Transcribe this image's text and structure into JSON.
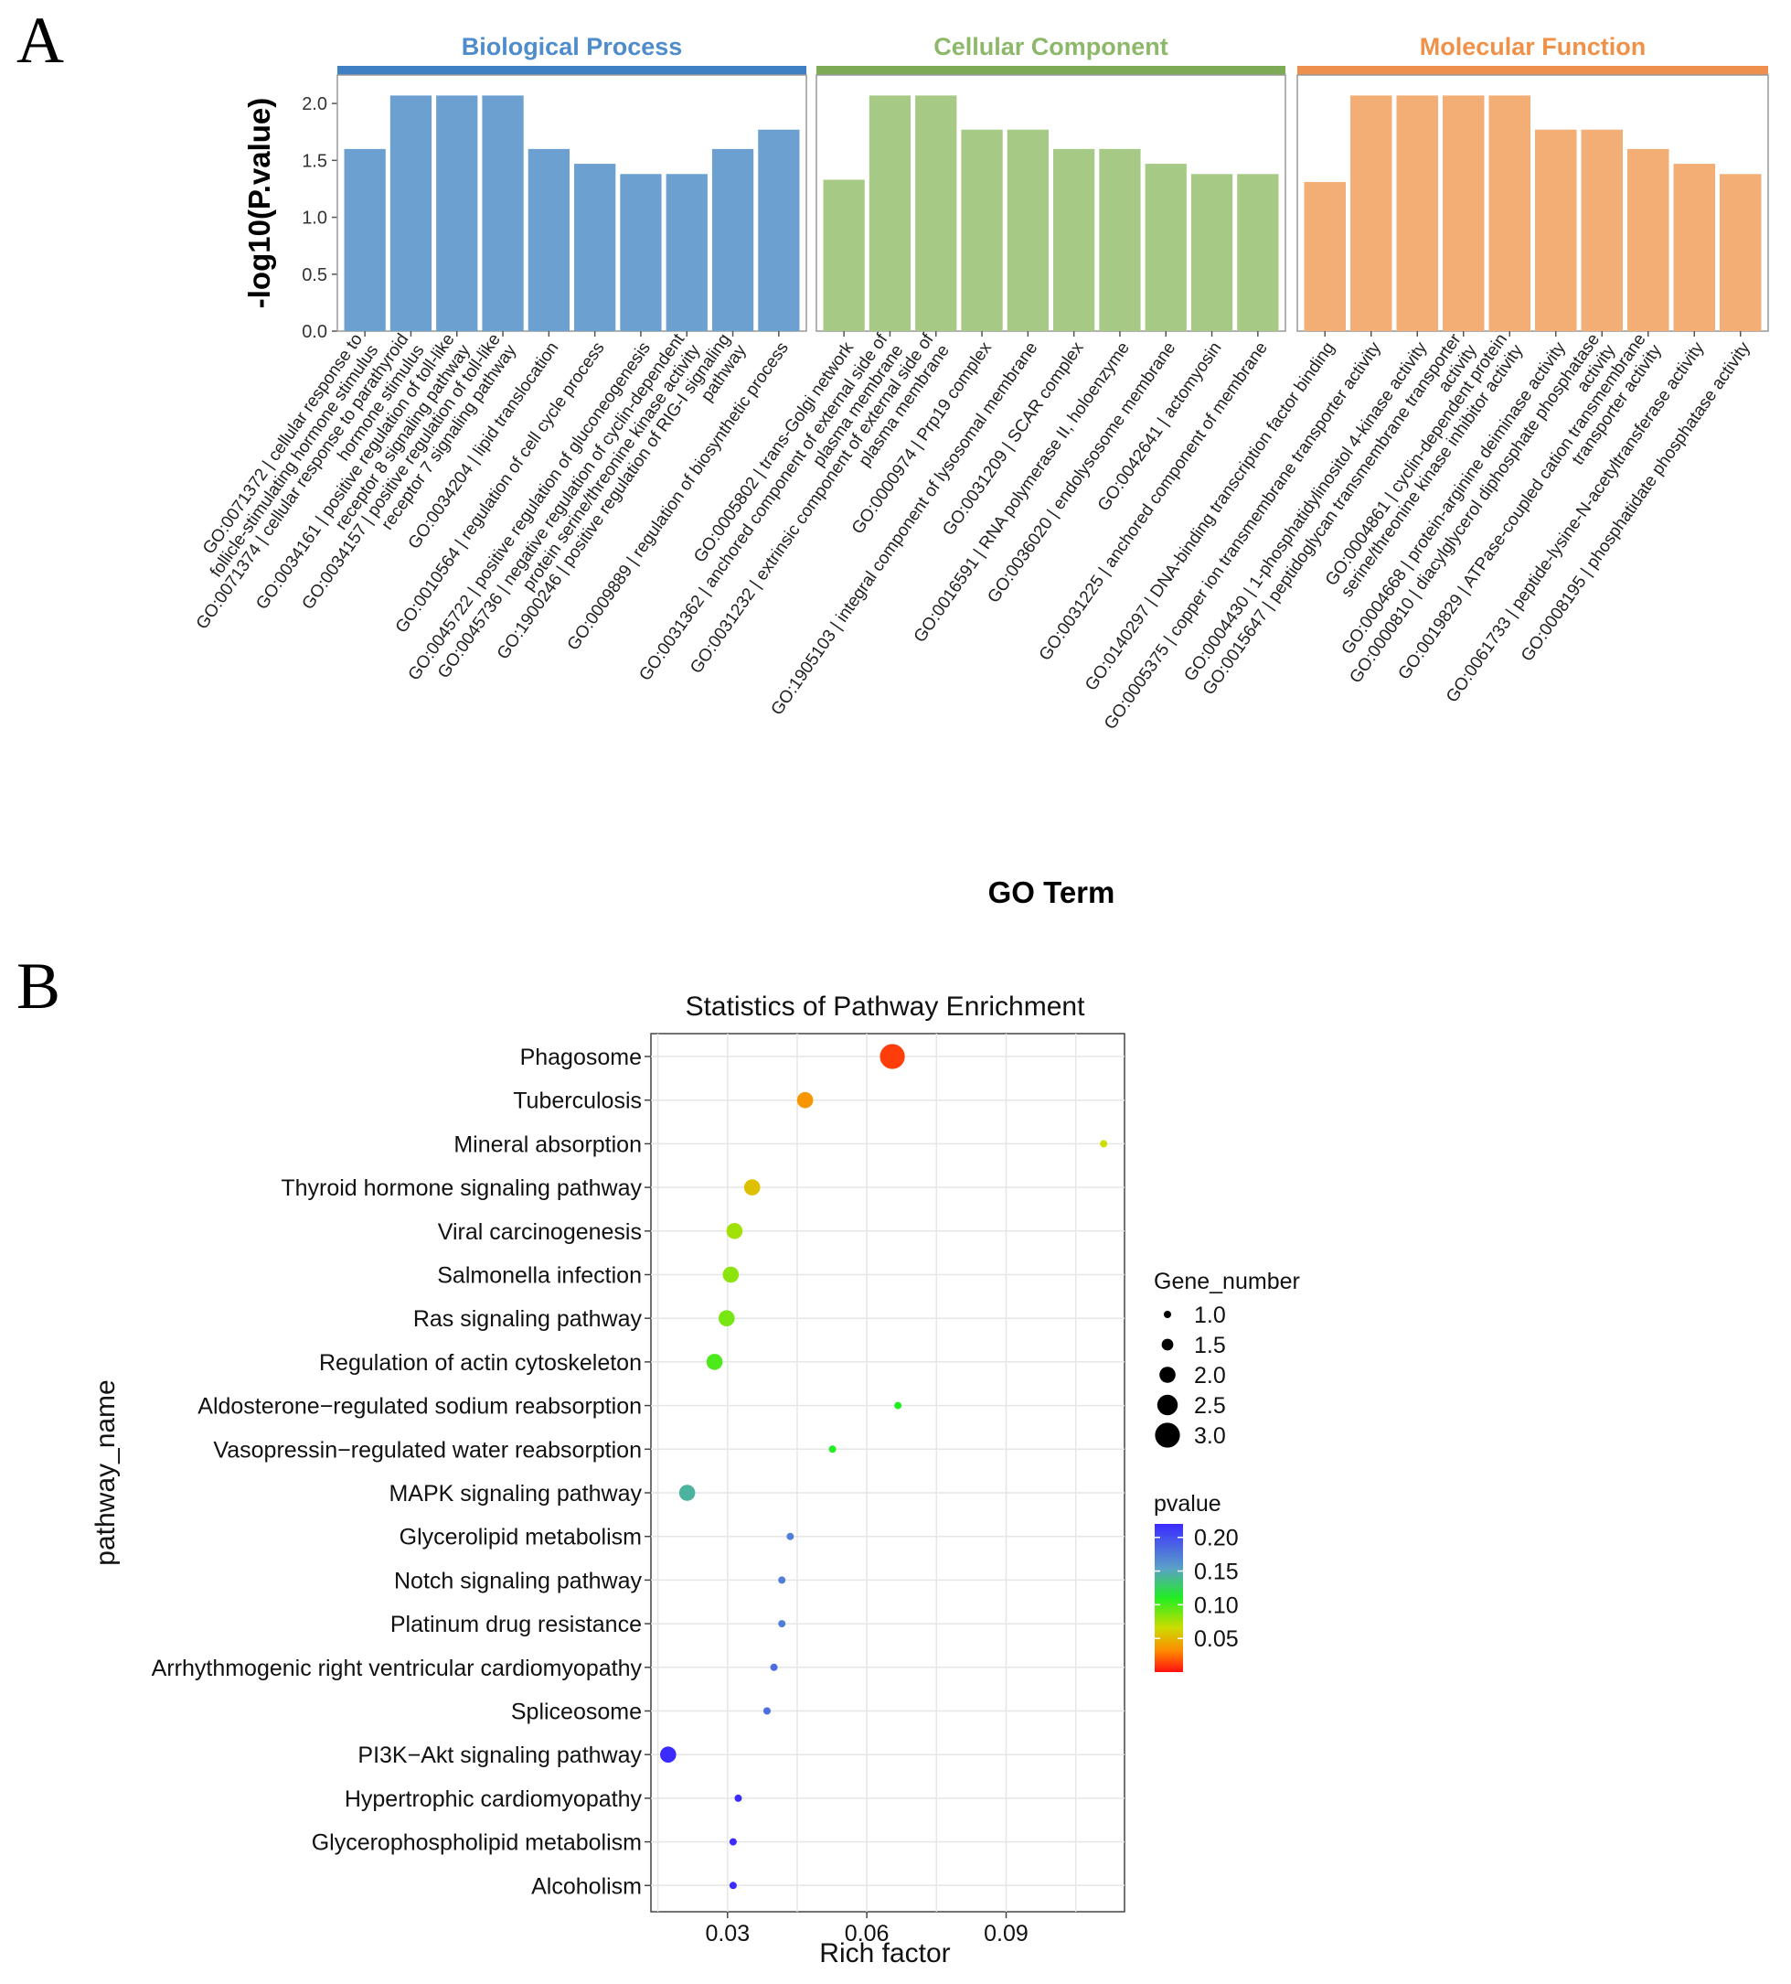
{
  "panel_a": {
    "letter": "A"
  },
  "panel_b": {
    "letter": "B"
  },
  "chart_data": [
    {
      "type": "bar",
      "title": "",
      "xlabel": "GO Term",
      "ylabel": "-log10(P.value)",
      "ylim": [
        0,
        2.25
      ],
      "yticks": [
        "0.0",
        "0.5",
        "1.0",
        "1.5",
        "2.0"
      ],
      "facets": [
        {
          "name": "Biological Process",
          "color": "#6CA0D0",
          "strip_color": "#3F7FC4",
          "title_color": "#4E8CCB",
          "categories": [
            "GO:0071372 | cellular response to follicle-stimulating hormone stimulus",
            "GO:0071374 | cellular response to parathyroid hormone stimulus",
            "GO:0034161 | positive regulation of toll-like receptor 8 signaling pathway",
            "GO:0034157 | positive regulation of toll-like receptor 7 signaling pathway",
            "GO:0034204 | lipid translocation",
            "GO:0010564 | regulation of cell cycle process",
            "GO:0045722 | positive regulation of gluconeogenesis",
            "GO:0045736 | negative regulation of cyclin-dependent protein serine/threonine kinase activity",
            "GO:1900246 | positive regulation of RIG-I signaling pathway",
            "GO:0009889 | regulation of biosynthetic process"
          ],
          "values": [
            1.6,
            2.07,
            2.07,
            2.07,
            1.6,
            1.47,
            1.38,
            1.38,
            1.6,
            1.77
          ]
        },
        {
          "name": "Cellular Component",
          "color": "#A6C985",
          "strip_color": "#7DAA55",
          "title_color": "#8DB86A",
          "categories": [
            "GO:0005802 | trans-Golgi network",
            "GO:0031362 | anchored component of external side of plasma membrane",
            "GO:0031232 | extrinsic component of external side of plasma membrane",
            "GO:0000974 | Prp19 complex",
            "GO:1905103 | integral component of lysosomal membrane",
            "GO:0031209 | SCAR complex",
            "GO:0016591 | RNA polymerase II, holoenzyme",
            "GO:0036020 | endolysosome membrane",
            "GO:0042641 | actomyosin",
            "GO:0031225 | anchored component of membrane"
          ],
          "values": [
            1.33,
            2.07,
            2.07,
            1.77,
            1.77,
            1.6,
            1.6,
            1.47,
            1.38,
            1.38
          ]
        },
        {
          "name": "Molecular Function",
          "color": "#F2AE75",
          "strip_color": "#EE8F4E",
          "title_color": "#F0914A",
          "categories": [
            "GO:0140297 | DNA-binding transcription factor binding",
            "GO:0005375 | copper ion transmembrane transporter activity",
            "GO:0004430 | 1-phosphatidylinositol 4-kinase activity",
            "GO:0015647 | peptidoglycan transmembrane transporter activity",
            "GO:0004861 | cyclin-dependent protein serine/threonine kinase inhibitor activity",
            "GO:0004668 | protein-arginine deiminase activity",
            "GO:0000810 | diacylglycerol diphosphate phosphatase activity",
            "GO:0019829 | ATPase-coupled cation transmembrane transporter activity",
            "GO:0061733 | peptide-lysine-N-acetyltransferase activity",
            "GO:0008195 | phosphatidate phosphatase activity"
          ],
          "values": [
            1.31,
            2.07,
            2.07,
            2.07,
            2.07,
            1.77,
            1.77,
            1.6,
            1.47,
            1.38
          ]
        }
      ]
    },
    {
      "type": "scatter",
      "title": "Statistics of Pathway Enrichment",
      "xlabel": "Rich factor",
      "ylabel": "pathway_name",
      "xlim": [
        0.0135,
        0.1155
      ],
      "xticks": [
        "0.03",
        "0.06",
        "0.09"
      ],
      "pathways": [
        "Phagosome",
        "Tuberculosis",
        "Mineral absorption",
        "Thyroid hormone signaling pathway",
        "Viral carcinogenesis",
        "Salmonella infection",
        "Ras signaling pathway",
        "Regulation of actin cytoskeleton",
        "Aldosterone−regulated sodium reabsorption",
        "Vasopressin−regulated water reabsorption",
        "MAPK signaling pathway",
        "Glycerolipid metabolism",
        "Notch signaling pathway",
        "Platinum drug resistance",
        "Arrhythmogenic right ventricular cardiomyopathy",
        "Spliceosome",
        "PI3K−Akt signaling pathway",
        "Hypertrophic cardiomyopathy",
        "Glycerophospholipid metabolism",
        "Alcoholism"
      ],
      "rich_factor": [
        0.0655,
        0.0467,
        0.111,
        0.0353,
        0.0315,
        0.0307,
        0.0298,
        0.0272,
        0.0667,
        0.0526,
        0.0213,
        0.0435,
        0.0417,
        0.0417,
        0.04,
        0.0385,
        0.0172,
        0.0323,
        0.0312,
        0.0312
      ],
      "gene_number": [
        3,
        2,
        1,
        2,
        2,
        2,
        2,
        2,
        1,
        1,
        2,
        1,
        1,
        1,
        1,
        1,
        2,
        1,
        1,
        1
      ],
      "pvalue": [
        0.015,
        0.045,
        0.07,
        0.06,
        0.08,
        0.085,
        0.09,
        0.1,
        0.11,
        0.11,
        0.14,
        0.17,
        0.17,
        0.17,
        0.18,
        0.18,
        0.22,
        0.22,
        0.22,
        0.22
      ],
      "size_legend": {
        "title": "Gene_number",
        "labels": [
          "1.0",
          "1.5",
          "2.0",
          "2.5",
          "3.0"
        ]
      },
      "color_legend": {
        "title": "pvalue",
        "labels": [
          "0.20",
          "0.15",
          "0.10",
          "0.05"
        ],
        "range": [
          0.0,
          0.22
        ]
      }
    }
  ]
}
